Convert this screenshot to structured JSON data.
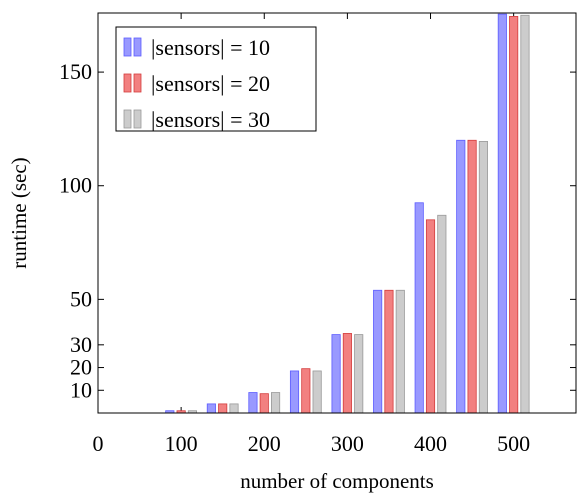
{
  "chart_data": {
    "type": "bar",
    "title": "",
    "xlabel": "number of components",
    "ylabel": "runtime (sec)",
    "xlim": [
      0,
      575
    ],
    "ylim": [
      0,
      176
    ],
    "xticks": [
      0,
      100,
      200,
      300,
      400,
      500
    ],
    "yticks": [
      10,
      20,
      30,
      50,
      100,
      150
    ],
    "grid": false,
    "legend_position": "top-left",
    "bar_width_units": 10,
    "x": [
      100,
      150,
      200,
      250,
      300,
      350,
      400,
      450,
      500
    ],
    "series": [
      {
        "name": "|sensors| = 10",
        "color": "#9999ff",
        "edge": "#5c5cff",
        "values": [
          1,
          4,
          9,
          18.5,
          34.5,
          54,
          92.5,
          120,
          175.5
        ]
      },
      {
        "name": "|sensors| = 20",
        "color": "#f28080",
        "edge": "#d43c3c",
        "values": [
          1,
          4,
          8.5,
          19.5,
          35,
          54,
          85,
          120,
          174.5
        ]
      },
      {
        "name": "|sensors| = 30",
        "color": "#cccccc",
        "edge": "#999999",
        "values": [
          1,
          4,
          9,
          18.5,
          34.5,
          54,
          87,
          119.5,
          175
        ]
      }
    ]
  }
}
